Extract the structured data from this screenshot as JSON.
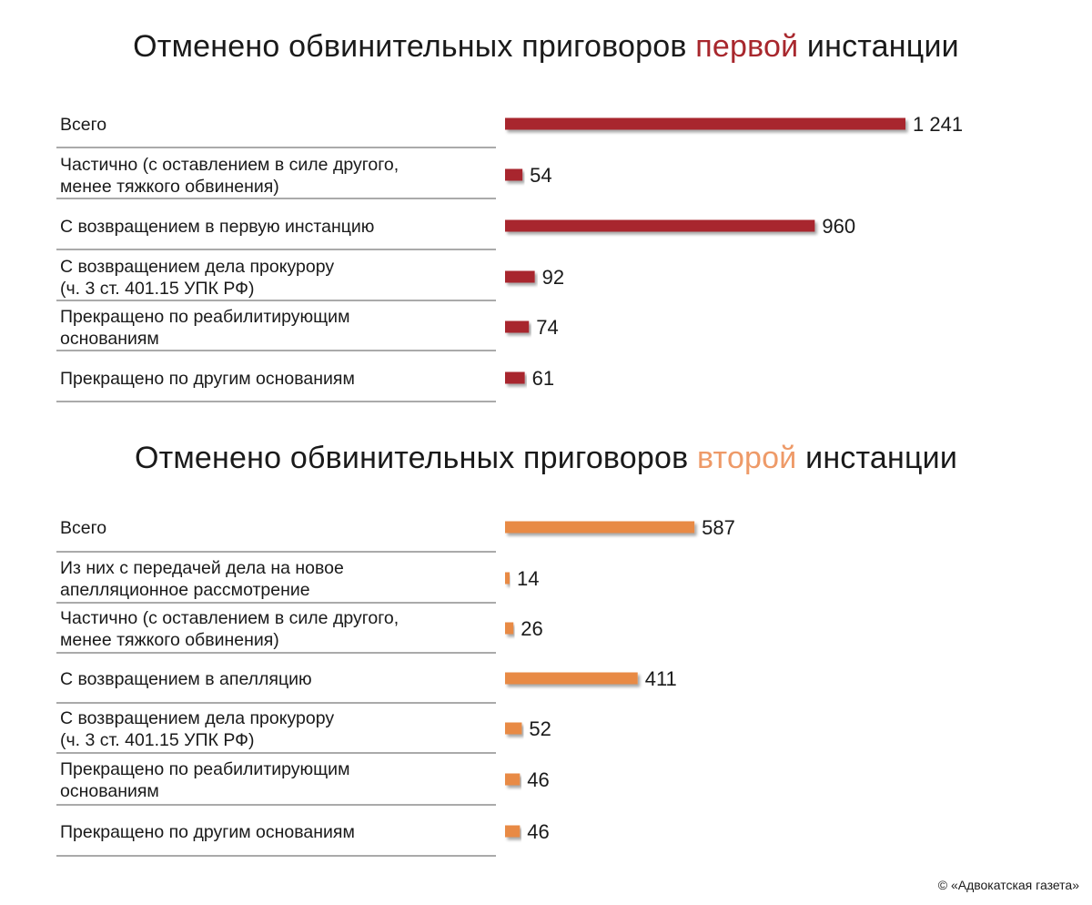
{
  "chart_data": [
    {
      "type": "bar",
      "orientation": "horizontal",
      "title_parts": [
        "Отменено обвинительных приговоров ",
        "первой",
        " инстанции"
      ],
      "accent_color": "#a8272d",
      "bar_color": "#a8272d",
      "categories": [
        [
          "Всего"
        ],
        [
          "Частично (с оставлением в силе другого,",
          "менее тяжкого обвинения)"
        ],
        [
          "С возвращением в первую инстанцию"
        ],
        [
          "С возвращением дела прокурору",
          "(ч. 3 ст. 401.15 УПК РФ)"
        ],
        [
          "Прекращено по реабилитирующим",
          "основаниям"
        ],
        [
          "Прекращено по другим основаниям"
        ]
      ],
      "values": [
        1241,
        54,
        960,
        92,
        74,
        61
      ],
      "value_labels": [
        "1 241",
        "54",
        "960",
        "92",
        "74",
        "61"
      ],
      "xlim": [
        0,
        1241
      ]
    },
    {
      "type": "bar",
      "orientation": "horizontal",
      "title_parts": [
        "Отменено обвинительных приговоров ",
        "второй",
        " инстанции"
      ],
      "accent_color": "#ee9a68",
      "bar_color": "#e88a45",
      "categories": [
        [
          "Всего"
        ],
        [
          "Из них с передачей дела на новое",
          "апелляционное рассмотрение"
        ],
        [
          "Частично (с оставлением в силе другого,",
          "менее тяжкого обвинения)"
        ],
        [
          "С возвращением в апелляцию"
        ],
        [
          "С возвращением дела прокурору",
          "(ч. 3 ст. 401.15 УПК РФ)"
        ],
        [
          "Прекращено по реабилитирующим",
          "основаниям"
        ],
        [
          "Прекращено по другим основаниям"
        ]
      ],
      "values": [
        587,
        14,
        26,
        411,
        52,
        46,
        46
      ],
      "value_labels": [
        "587",
        "14",
        "26",
        "411",
        "52",
        "46",
        "46"
      ],
      "xlim": [
        0,
        1241
      ]
    }
  ],
  "footer": {
    "copyright": "© «Адвокатская газета»"
  }
}
